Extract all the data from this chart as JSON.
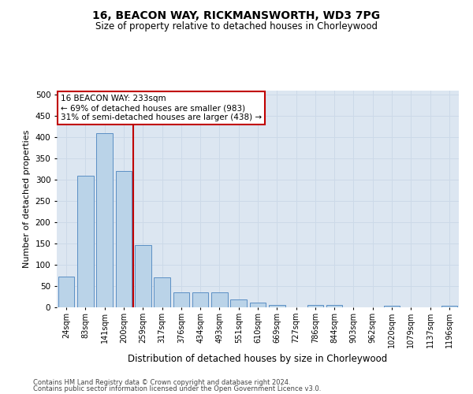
{
  "title": "16, BEACON WAY, RICKMANSWORTH, WD3 7PG",
  "subtitle": "Size of property relative to detached houses in Chorleywood",
  "xlabel": "Distribution of detached houses by size in Chorleywood",
  "ylabel": "Number of detached properties",
  "footer_line1": "Contains HM Land Registry data © Crown copyright and database right 2024.",
  "footer_line2": "Contains public sector information licensed under the Open Government Licence v3.0.",
  "annotation_line1": "16 BEACON WAY: 233sqm",
  "annotation_line2": "← 69% of detached houses are smaller (983)",
  "annotation_line3": "31% of semi-detached houses are larger (438) →",
  "bar_color": "#bad3e8",
  "bar_edge_color": "#5b8fc4",
  "vline_color": "#c00000",
  "annotation_box_edgecolor": "#c00000",
  "grid_color": "#ccd9e8",
  "background_color": "#dce6f1",
  "categories": [
    "24sqm",
    "83sqm",
    "141sqm",
    "200sqm",
    "259sqm",
    "317sqm",
    "376sqm",
    "434sqm",
    "493sqm",
    "551sqm",
    "610sqm",
    "669sqm",
    "727sqm",
    "786sqm",
    "844sqm",
    "903sqm",
    "962sqm",
    "1020sqm",
    "1079sqm",
    "1137sqm",
    "1196sqm"
  ],
  "values": [
    73,
    310,
    410,
    320,
    147,
    70,
    35,
    35,
    35,
    18,
    11,
    5,
    0,
    6,
    6,
    0,
    0,
    3,
    0,
    0,
    4
  ],
  "ylim": [
    0,
    510
  ],
  "yticks": [
    0,
    50,
    100,
    150,
    200,
    250,
    300,
    350,
    400,
    450,
    500
  ],
  "vline_x": 3.5,
  "figsize": [
    6.0,
    5.0
  ],
  "dpi": 100,
  "title_fontsize": 10,
  "subtitle_fontsize": 8.5
}
